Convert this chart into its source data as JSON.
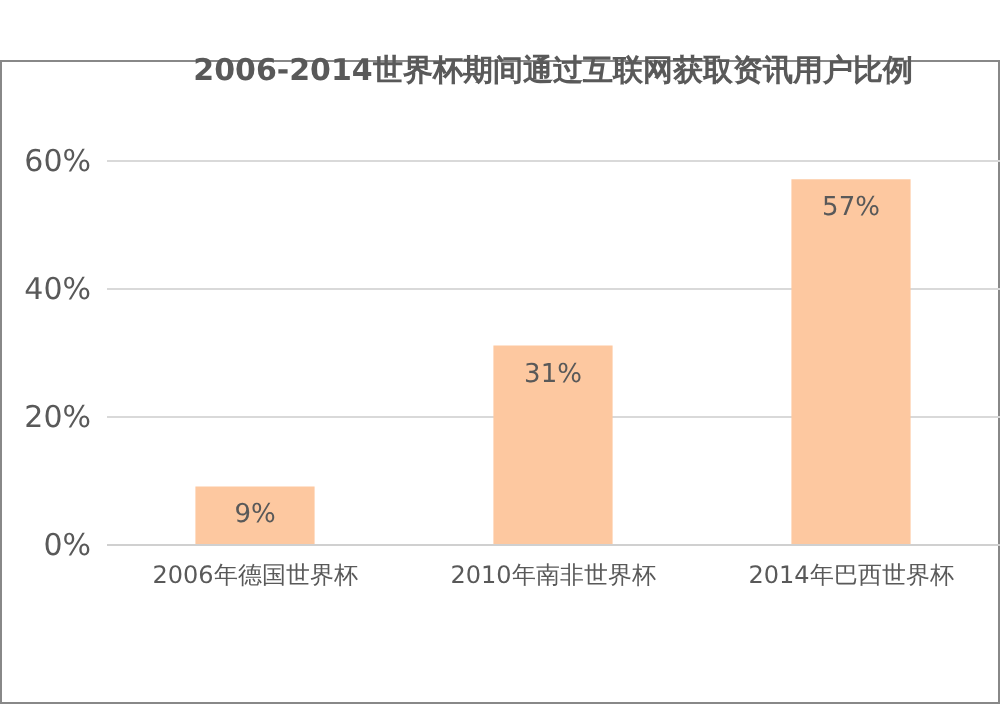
{
  "chart_data": {
    "type": "bar",
    "title": "2006-2014世界杯期间通过互联网获取资讯用户比例",
    "categories": [
      "2006年德国世界杯",
      "2010年南非世界杯",
      "2014年巴西世界杯"
    ],
    "values": [
      9,
      31,
      57
    ],
    "color": "#fdc8a0",
    "data_labels": true,
    "value_labels": [
      "9%",
      "31%",
      "57%"
    ],
    "ylim": [
      0,
      60
    ],
    "yticks": [
      {
        "value": 0,
        "label": "0%"
      },
      {
        "value": 20,
        "label": "20%"
      },
      {
        "value": 40,
        "label": "40%"
      },
      {
        "value": 60,
        "label": "60%"
      }
    ],
    "grid": "y"
  }
}
